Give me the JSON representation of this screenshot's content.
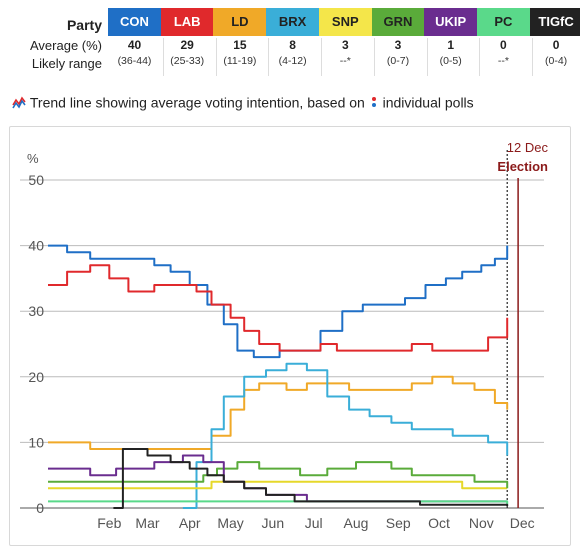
{
  "header": {
    "party_label": "Party",
    "average_label": "Average (%)",
    "range_label": "Likely range"
  },
  "parties": [
    {
      "code": "CON",
      "average": "40",
      "range": "(36-44)",
      "color": "#1f6fc6",
      "text_color": "#ffffff"
    },
    {
      "code": "LAB",
      "average": "29",
      "range": "(25-33)",
      "color": "#e0292c",
      "text_color": "#ffffff"
    },
    {
      "code": "LD",
      "average": "15",
      "range": "(11-19)",
      "color": "#f0a928",
      "text_color": "#222222"
    },
    {
      "code": "BRX",
      "average": "8",
      "range": "(4-12)",
      "color": "#3aaed8",
      "text_color": "#222222"
    },
    {
      "code": "SNP",
      "average": "3",
      "range": "--*",
      "color": "#f4e64a",
      "text_color": "#222222"
    },
    {
      "code": "GRN",
      "average": "3",
      "range": "(0-7)",
      "color": "#5aab3a",
      "text_color": "#222222"
    },
    {
      "code": "UKIP",
      "average": "1",
      "range": "(0-5)",
      "color": "#6a2d8f",
      "text_color": "#ffffff"
    },
    {
      "code": "PC",
      "average": "0",
      "range": "--*",
      "color": "#5ad98a",
      "text_color": "#222222"
    },
    {
      "code": "TIGfC",
      "average": "0",
      "range": "(0-4)",
      "color": "#222222",
      "text_color": "#ffffff"
    }
  ],
  "legend": {
    "trend_text": "Trend line showing average voting intention, based on",
    "polls_text": "individual polls",
    "trend_icon": "trend-line-icon",
    "polls_icon": "poll-dots-icon"
  },
  "chart_data": {
    "type": "line",
    "ylabel": "%",
    "ylim": [
      0,
      50
    ],
    "yticks": [
      0,
      10,
      20,
      30,
      40,
      50
    ],
    "xlim": [
      "2019-01-01",
      "2019-12-31"
    ],
    "xticks": [
      {
        "label": "Feb",
        "date": "2019-02-15"
      },
      {
        "label": "Mar",
        "date": "2019-03-15"
      },
      {
        "label": "Apr",
        "date": "2019-04-15"
      },
      {
        "label": "May",
        "date": "2019-05-15"
      },
      {
        "label": "Jun",
        "date": "2019-06-15"
      },
      {
        "label": "Jul",
        "date": "2019-07-15"
      },
      {
        "label": "Aug",
        "date": "2019-08-15"
      },
      {
        "label": "Sep",
        "date": "2019-09-15"
      },
      {
        "label": "Oct",
        "date": "2019-10-15"
      },
      {
        "label": "Nov",
        "date": "2019-11-15"
      },
      {
        "label": "Dec",
        "date": "2019-12-15"
      }
    ],
    "grid": true,
    "annotation": {
      "date_label": "12 Dec",
      "event_label": "Election",
      "date": "2019-12-12",
      "color": "#8b1a1a"
    },
    "today": "2019-12-04",
    "series": [
      {
        "name": "CON",
        "color": "#1f6fc6",
        "points": [
          [
            "2019-01-01",
            40
          ],
          [
            "2019-01-15",
            39
          ],
          [
            "2019-02-01",
            38
          ],
          [
            "2019-03-01",
            38
          ],
          [
            "2019-03-20",
            37
          ],
          [
            "2019-04-01",
            36
          ],
          [
            "2019-04-15",
            34
          ],
          [
            "2019-04-28",
            31
          ],
          [
            "2019-05-10",
            28
          ],
          [
            "2019-05-20",
            24
          ],
          [
            "2019-06-01",
            23
          ],
          [
            "2019-06-20",
            24
          ],
          [
            "2019-07-01",
            24
          ],
          [
            "2019-07-20",
            27
          ],
          [
            "2019-08-05",
            30
          ],
          [
            "2019-08-20",
            31
          ],
          [
            "2019-09-05",
            31
          ],
          [
            "2019-09-20",
            32
          ],
          [
            "2019-10-05",
            34
          ],
          [
            "2019-10-20",
            35
          ],
          [
            "2019-11-01",
            36
          ],
          [
            "2019-11-15",
            37
          ],
          [
            "2019-11-25",
            38
          ],
          [
            "2019-12-04",
            40
          ]
        ]
      },
      {
        "name": "LAB",
        "color": "#e0292c",
        "points": [
          [
            "2019-01-01",
            34
          ],
          [
            "2019-01-15",
            36
          ],
          [
            "2019-02-01",
            37
          ],
          [
            "2019-02-15",
            35
          ],
          [
            "2019-03-01",
            33
          ],
          [
            "2019-03-20",
            34
          ],
          [
            "2019-04-05",
            34
          ],
          [
            "2019-04-20",
            33
          ],
          [
            "2019-05-01",
            31
          ],
          [
            "2019-05-15",
            29
          ],
          [
            "2019-05-25",
            27
          ],
          [
            "2019-06-05",
            25
          ],
          [
            "2019-06-20",
            24
          ],
          [
            "2019-07-05",
            24
          ],
          [
            "2019-07-20",
            25
          ],
          [
            "2019-08-01",
            24
          ],
          [
            "2019-08-20",
            24
          ],
          [
            "2019-09-05",
            24
          ],
          [
            "2019-09-25",
            25
          ],
          [
            "2019-10-10",
            24
          ],
          [
            "2019-10-25",
            24
          ],
          [
            "2019-11-10",
            24
          ],
          [
            "2019-11-20",
            26
          ],
          [
            "2019-12-04",
            29
          ]
        ]
      },
      {
        "name": "LD",
        "color": "#f0a928",
        "points": [
          [
            "2019-01-01",
            10
          ],
          [
            "2019-02-01",
            9
          ],
          [
            "2019-03-01",
            9
          ],
          [
            "2019-04-01",
            9
          ],
          [
            "2019-04-20",
            9
          ],
          [
            "2019-05-01",
            11
          ],
          [
            "2019-05-15",
            15
          ],
          [
            "2019-05-25",
            18
          ],
          [
            "2019-06-05",
            19
          ],
          [
            "2019-06-25",
            18
          ],
          [
            "2019-07-10",
            19
          ],
          [
            "2019-07-25",
            19
          ],
          [
            "2019-08-10",
            18
          ],
          [
            "2019-09-01",
            18
          ],
          [
            "2019-09-25",
            19
          ],
          [
            "2019-10-10",
            20
          ],
          [
            "2019-10-25",
            19
          ],
          [
            "2019-11-10",
            18
          ],
          [
            "2019-11-25",
            16
          ],
          [
            "2019-12-04",
            15
          ]
        ]
      },
      {
        "name": "BRX",
        "color": "#3aaed8",
        "points": [
          [
            "2019-04-10",
            0
          ],
          [
            "2019-04-20",
            7
          ],
          [
            "2019-05-01",
            12
          ],
          [
            "2019-05-10",
            17
          ],
          [
            "2019-05-25",
            20
          ],
          [
            "2019-06-10",
            21
          ],
          [
            "2019-06-25",
            22
          ],
          [
            "2019-07-10",
            21
          ],
          [
            "2019-07-25",
            17
          ],
          [
            "2019-08-10",
            15
          ],
          [
            "2019-08-25",
            14
          ],
          [
            "2019-09-10",
            13
          ],
          [
            "2019-09-25",
            12
          ],
          [
            "2019-10-10",
            12
          ],
          [
            "2019-10-25",
            11
          ],
          [
            "2019-11-10",
            11
          ],
          [
            "2019-11-20",
            10
          ],
          [
            "2019-12-04",
            8
          ]
        ]
      },
      {
        "name": "SNP",
        "color": "#e6d82a",
        "points": [
          [
            "2019-01-01",
            3
          ],
          [
            "2019-03-01",
            3
          ],
          [
            "2019-05-01",
            4
          ],
          [
            "2019-07-01",
            4
          ],
          [
            "2019-09-01",
            4
          ],
          [
            "2019-11-01",
            3
          ],
          [
            "2019-12-04",
            3
          ]
        ]
      },
      {
        "name": "GRN",
        "color": "#5aab3a",
        "points": [
          [
            "2019-01-01",
            4
          ],
          [
            "2019-03-01",
            4
          ],
          [
            "2019-04-25",
            5
          ],
          [
            "2019-05-05",
            6
          ],
          [
            "2019-05-20",
            7
          ],
          [
            "2019-06-05",
            6
          ],
          [
            "2019-06-20",
            6
          ],
          [
            "2019-07-05",
            5
          ],
          [
            "2019-07-25",
            6
          ],
          [
            "2019-08-15",
            7
          ],
          [
            "2019-09-10",
            6
          ],
          [
            "2019-09-25",
            5
          ],
          [
            "2019-10-15",
            5
          ],
          [
            "2019-11-10",
            4
          ],
          [
            "2019-12-04",
            3
          ]
        ]
      },
      {
        "name": "UKIP",
        "color": "#6a2d8f",
        "points": [
          [
            "2019-01-01",
            6
          ],
          [
            "2019-02-01",
            5
          ],
          [
            "2019-02-20",
            6
          ],
          [
            "2019-03-20",
            7
          ],
          [
            "2019-04-10",
            8
          ],
          [
            "2019-04-25",
            7
          ],
          [
            "2019-05-10",
            4
          ],
          [
            "2019-05-25",
            3
          ],
          [
            "2019-06-10",
            2
          ],
          [
            "2019-07-10",
            1
          ],
          [
            "2019-09-01",
            1
          ],
          [
            "2019-11-01",
            1
          ],
          [
            "2019-12-04",
            1
          ]
        ]
      },
      {
        "name": "PC",
        "color": "#5ad98a",
        "points": [
          [
            "2019-01-01",
            1
          ],
          [
            "2019-06-01",
            1
          ],
          [
            "2019-09-01",
            1
          ],
          [
            "2019-12-04",
            0.5
          ]
        ]
      },
      {
        "name": "TIGfC",
        "color": "#222222",
        "points": [
          [
            "2019-02-18",
            0
          ],
          [
            "2019-02-25",
            9
          ],
          [
            "2019-03-15",
            8
          ],
          [
            "2019-04-01",
            7
          ],
          [
            "2019-04-15",
            6
          ],
          [
            "2019-04-28",
            5
          ],
          [
            "2019-05-10",
            4
          ],
          [
            "2019-05-25",
            3
          ],
          [
            "2019-06-10",
            2
          ],
          [
            "2019-07-01",
            1
          ],
          [
            "2019-08-01",
            1
          ],
          [
            "2019-10-01",
            0.5
          ],
          [
            "2019-12-04",
            0.3
          ]
        ]
      }
    ]
  }
}
